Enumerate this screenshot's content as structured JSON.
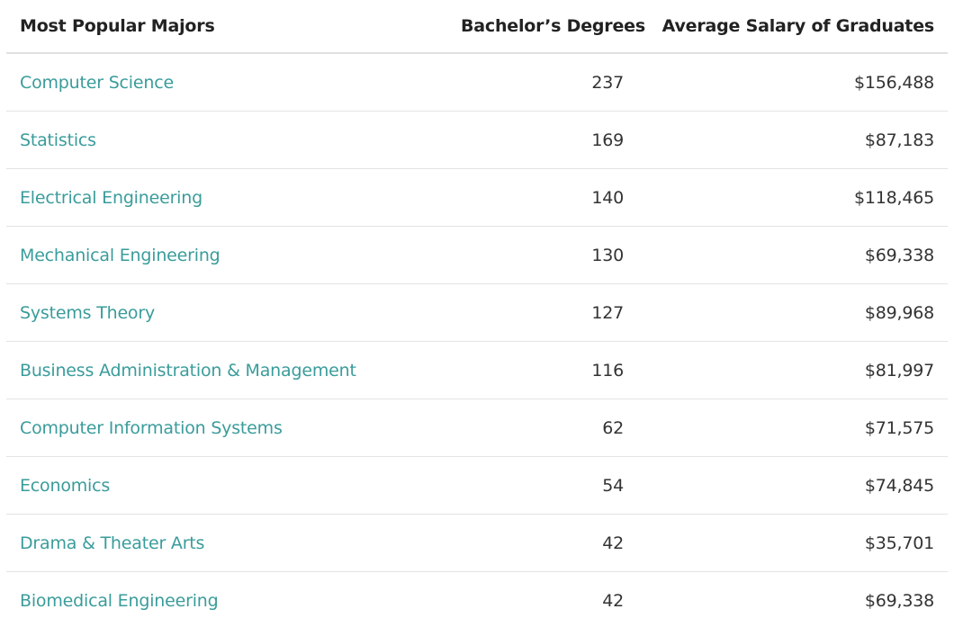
{
  "table": {
    "headers": {
      "major": "Most Popular Majors",
      "degrees": "Bachelor’s Degrees",
      "salary": "Average Salary of Graduates"
    },
    "rows": [
      {
        "major": "Computer Science",
        "degrees": "237",
        "salary": "$156,488"
      },
      {
        "major": "Statistics",
        "degrees": "169",
        "salary": "$87,183"
      },
      {
        "major": "Electrical Engineering",
        "degrees": "140",
        "salary": "$118,465"
      },
      {
        "major": "Mechanical Engineering",
        "degrees": "130",
        "salary": "$69,338"
      },
      {
        "major": "Systems Theory",
        "degrees": "127",
        "salary": "$89,968"
      },
      {
        "major": "Business Administration & Management",
        "degrees": "116",
        "salary": "$81,997"
      },
      {
        "major": "Computer Information Systems",
        "degrees": "62",
        "salary": "$71,575"
      },
      {
        "major": "Economics",
        "degrees": "54",
        "salary": "$74,845"
      },
      {
        "major": "Drama & Theater Arts",
        "degrees": "42",
        "salary": "$35,701"
      },
      {
        "major": "Biomedical Engineering",
        "degrees": "42",
        "salary": "$69,338"
      }
    ]
  },
  "colors": {
    "link": "#3a9c9b",
    "text": "#333333",
    "header": "#222222",
    "divider": "#e3e3e3"
  }
}
